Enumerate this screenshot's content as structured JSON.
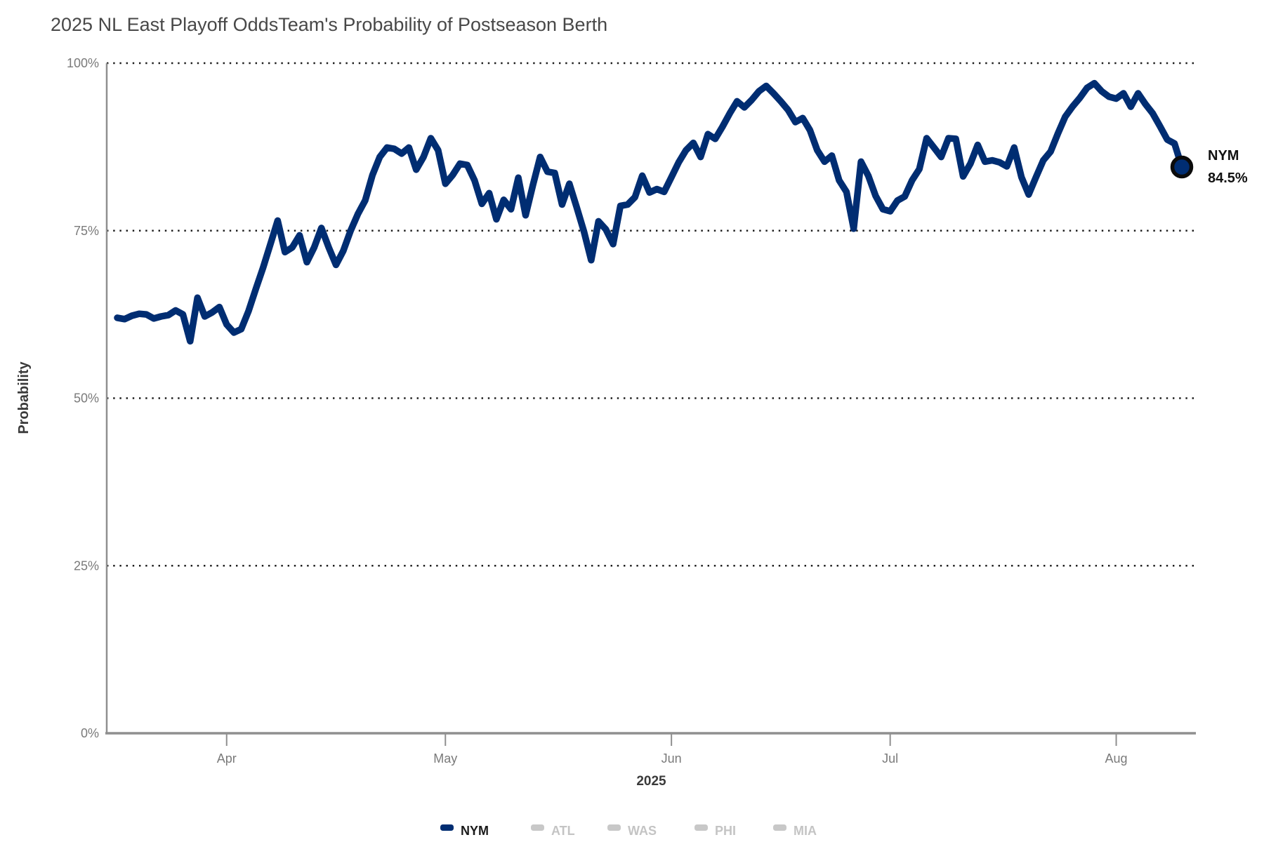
{
  "title": "2025 NL East Playoff OddsTeam's Probability of Postseason Berth",
  "y_axis": {
    "label": "Probability",
    "ticks": [
      {
        "label": "100%",
        "value": 100
      },
      {
        "label": "75%",
        "value": 75
      },
      {
        "label": "50%",
        "value": 50
      },
      {
        "label": "25%",
        "value": 25
      },
      {
        "label": "0%",
        "value": 0
      }
    ]
  },
  "x_axis": {
    "year_label": "2025",
    "ticks": [
      {
        "label": "Apr",
        "day_offset": 15
      },
      {
        "label": "May",
        "day_offset": 45
      },
      {
        "label": "Jun",
        "day_offset": 76
      },
      {
        "label": "Jul",
        "day_offset": 106
      },
      {
        "label": "Aug",
        "day_offset": 137
      }
    ]
  },
  "legend": [
    {
      "label": "NYM",
      "color": "#002D72",
      "active": true
    },
    {
      "label": "ATL",
      "color": "#c8c8c8",
      "active": false
    },
    {
      "label": "WAS",
      "color": "#c8c8c8",
      "active": false
    },
    {
      "label": "PHI",
      "color": "#c8c8c8",
      "active": false
    },
    {
      "label": "MIA",
      "color": "#c8c8c8",
      "active": false
    }
  ],
  "end_label": {
    "team": "NYM",
    "value": "84.5%"
  },
  "colors": {
    "line": "#002D72",
    "marker_stroke": "#0b0b0b",
    "inactive": "#c8c8c8",
    "inactive_text": "#c4c4c4",
    "active_text": "#1a1a1a",
    "axis": "#8f8f8f",
    "grid": "#1c1c1c"
  },
  "chart_data": {
    "type": "line",
    "title": "2025 NL East Playoff Odds",
    "subtitle": "Team's Probability of Postseason Berth",
    "xlabel": "2025",
    "ylabel": "Probability",
    "ylim": [
      0,
      100
    ],
    "grid": "horizontal dotted at 25/50/75/100",
    "legend_position": "bottom",
    "inactive_series": [
      "ATL",
      "WAS",
      "PHI",
      "MIA"
    ],
    "end_annotation": {
      "team": "NYM",
      "value_pct": 84.5
    },
    "series": [
      {
        "name": "NYM",
        "color": "#002D72",
        "start_date": "2025-03-17",
        "frequency": "daily",
        "values": [
          62.0,
          61.8,
          62.3,
          62.6,
          62.5,
          61.9,
          62.2,
          62.4,
          63.1,
          62.5,
          58.5,
          65.0,
          62.2,
          62.8,
          63.6,
          61.0,
          59.8,
          60.3,
          63.0,
          66.3,
          69.5,
          73.0,
          76.5,
          71.8,
          72.5,
          74.3,
          70.3,
          72.5,
          75.4,
          72.5,
          69.9,
          72.0,
          75.0,
          77.5,
          79.5,
          83.3,
          86.0,
          87.4,
          87.2,
          86.5,
          87.4,
          84.1,
          86.0,
          88.8,
          87.0,
          82.0,
          83.3,
          85.0,
          84.8,
          82.5,
          79.0,
          80.6,
          76.7,
          79.6,
          78.2,
          82.9,
          77.3,
          81.8,
          86.0,
          83.8,
          83.6,
          78.9,
          82.0,
          78.5,
          74.9,
          70.6,
          76.4,
          75.2,
          73.0,
          78.7,
          78.9,
          80.0,
          83.2,
          80.7,
          81.2,
          80.8,
          83.0,
          85.2,
          87.0,
          88.1,
          86.0,
          89.4,
          88.7,
          90.5,
          92.5,
          94.3,
          93.4,
          94.5,
          95.8,
          96.6,
          95.5,
          94.3,
          93.0,
          91.2,
          91.8,
          90.0,
          87.0,
          85.3,
          86.2,
          82.5,
          80.8,
          75.3,
          85.3,
          83.2,
          80.2,
          78.2,
          77.9,
          79.5,
          80.1,
          82.5,
          84.2,
          88.8,
          87.4,
          86.0,
          88.8,
          88.7,
          83.1,
          85.0,
          87.8,
          85.3,
          85.5,
          85.2,
          84.6,
          87.4,
          83.0,
          80.4,
          83.0,
          85.5,
          86.8,
          89.5,
          92.0,
          93.5,
          94.8,
          96.3,
          97.0,
          95.8,
          95.0,
          94.7,
          95.5,
          93.5,
          95.5,
          93.9,
          92.5,
          90.6,
          88.6,
          88.0,
          84.5
        ]
      }
    ]
  }
}
